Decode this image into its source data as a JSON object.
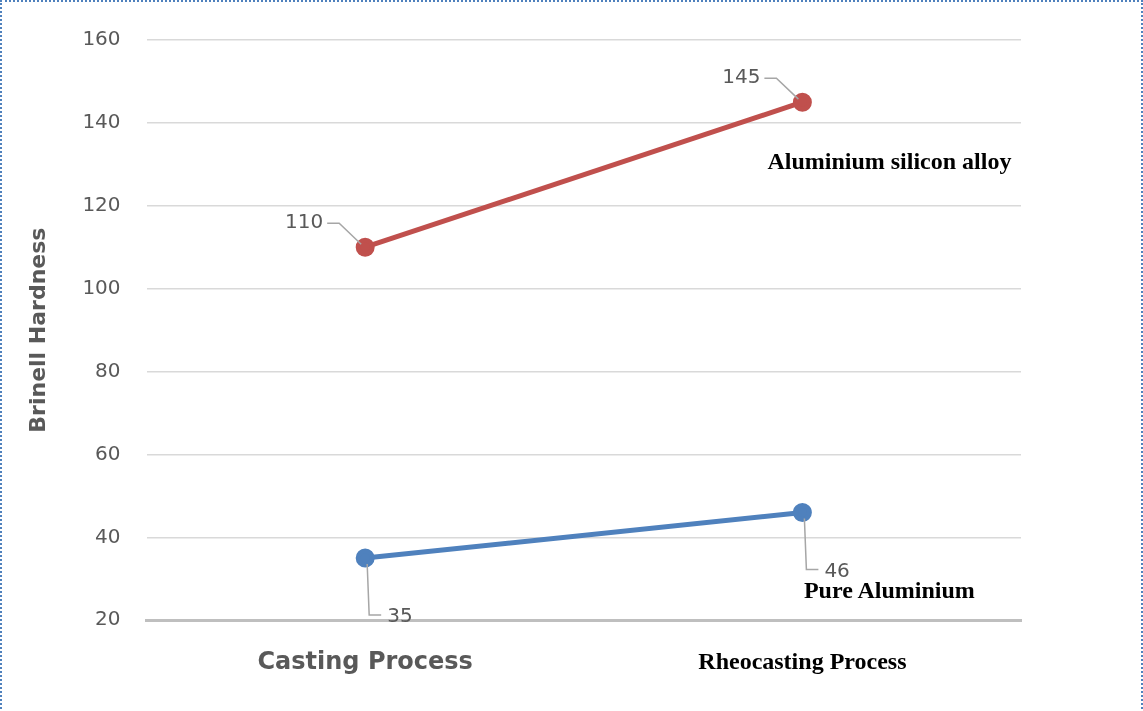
{
  "chart_data": {
    "type": "line",
    "ylabel": "Brinell Hardness",
    "categories": [
      "Casting Process",
      "Rheocasting Process"
    ],
    "series": [
      {
        "name": "Aluminium silicon alloy",
        "color": "#c0504d",
        "values": [
          110,
          145
        ]
      },
      {
        "name": "Pure Aluminium",
        "color": "#4f81bd",
        "values": [
          35,
          46
        ]
      }
    ],
    "ylim": [
      20,
      160
    ],
    "yticks": [
      20,
      40,
      60,
      80,
      100,
      120,
      140,
      160
    ],
    "grid": "y",
    "legend": false,
    "marker": "circle",
    "line_style": "solid",
    "data_labels": true
  }
}
